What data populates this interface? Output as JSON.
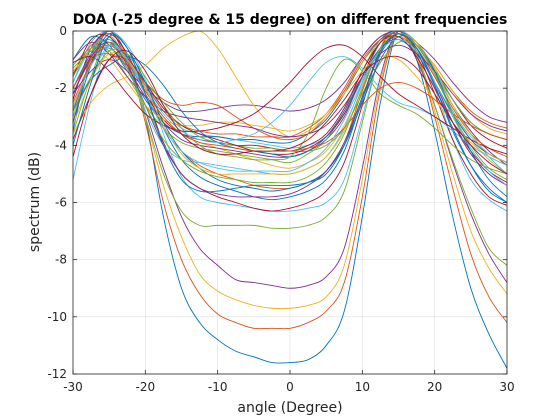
{
  "chart_data": {
    "type": "line",
    "title": "DOA (-25 degree & 15 degree) on different frequencies",
    "xlabel": "angle (Degree)",
    "ylabel": "spectrum (dB)",
    "xlim": [
      -30,
      30
    ],
    "ylim": [
      -12,
      0
    ],
    "xticks": [
      -30,
      -20,
      -10,
      0,
      10,
      20,
      30
    ],
    "yticks": [
      0,
      -2,
      -4,
      -6,
      -8,
      -10,
      -12
    ],
    "grid": true,
    "legend": "none",
    "colors": [
      "#0072BD",
      "#D95319",
      "#EDB120",
      "#7E2F8E",
      "#77AC30",
      "#4DBEEE",
      "#A2142F"
    ],
    "x": [
      -30,
      -27.5,
      -25,
      -22.5,
      -20,
      -17.5,
      -15,
      -12.5,
      -10,
      -7.5,
      -5,
      -2.5,
      0,
      2.5,
      5,
      7.5,
      10,
      12.5,
      15,
      17.5,
      20,
      22.5,
      25,
      27.5,
      30
    ],
    "series": [
      {
        "values": [
          -3.5,
          -0.8,
          0,
          -0.9,
          -3.0,
          -6.5,
          -9.0,
          -10.2,
          -10.8,
          -11.2,
          -11.4,
          -11.6,
          -11.6,
          -11.5,
          -11.0,
          -9.8,
          -6.5,
          -2.5,
          0,
          -1.0,
          -3.5,
          -6.5,
          -9.0,
          -10.6,
          -11.8
        ]
      },
      {
        "values": [
          -3.2,
          -0.9,
          0,
          -1.0,
          -3.2,
          -6.0,
          -8.0,
          -9.2,
          -9.9,
          -10.2,
          -10.4,
          -10.4,
          -10.4,
          -10.2,
          -9.8,
          -8.8,
          -5.8,
          -2.0,
          0,
          -0.8,
          -3.0,
          -5.5,
          -7.8,
          -9.3,
          -10.2
        ]
      },
      {
        "values": [
          -3.0,
          -1.0,
          0,
          -1.0,
          -3.0,
          -5.4,
          -7.2,
          -8.5,
          -9.1,
          -9.4,
          -9.6,
          -9.7,
          -9.7,
          -9.6,
          -9.3,
          -8.2,
          -5.2,
          -1.8,
          0,
          -0.9,
          -2.8,
          -5.0,
          -7.0,
          -8.3,
          -9.2
        ]
      },
      {
        "values": [
          -2.8,
          -1.1,
          0,
          -1.1,
          -2.8,
          -4.8,
          -6.5,
          -7.6,
          -8.2,
          -8.7,
          -8.8,
          -8.9,
          -9.0,
          -8.9,
          -8.6,
          -7.6,
          -4.8,
          -1.6,
          0,
          -1.0,
          -2.6,
          -4.6,
          -6.4,
          -7.8,
          -8.8
        ]
      },
      {
        "values": [
          -3.6,
          -1.6,
          -0.2,
          -1.2,
          -3.0,
          -5.0,
          -6.3,
          -6.8,
          -6.8,
          -6.8,
          -6.8,
          -6.9,
          -6.9,
          -6.8,
          -6.5,
          -5.6,
          -3.2,
          -0.8,
          0,
          -0.8,
          -2.6,
          -4.5,
          -6.2,
          -7.6,
          -8.2
        ]
      },
      {
        "values": [
          -1.8,
          -0.4,
          0,
          -0.5,
          -1.7,
          -3.6,
          -5.1,
          -5.8,
          -6.0,
          -6.1,
          -6.2,
          -6.3,
          -6.3,
          -6.2,
          -6.0,
          -5.2,
          -3.0,
          -0.8,
          -0.1,
          -0.6,
          -2.0,
          -3.8,
          -5.2,
          -5.9,
          -6.3
        ]
      },
      {
        "values": [
          -2.4,
          -0.6,
          -0.1,
          -0.8,
          -2.2,
          -3.9,
          -5.0,
          -5.5,
          -5.8,
          -6.0,
          -6.2,
          -6.3,
          -6.2,
          -6.0,
          -5.6,
          -4.6,
          -2.6,
          -0.6,
          0,
          -0.7,
          -2.2,
          -3.8,
          -5.0,
          -5.8,
          -6.1
        ]
      },
      {
        "values": [
          -2.0,
          -0.8,
          -0.3,
          -0.9,
          -2.0,
          -3.4,
          -4.5,
          -5.1,
          -5.4,
          -5.6,
          -5.8,
          -5.9,
          -5.8,
          -5.6,
          -5.2,
          -4.2,
          -2.4,
          -0.7,
          -0.1,
          -0.6,
          -1.9,
          -3.5,
          -4.7,
          -5.5,
          -6.0
        ]
      },
      {
        "values": [
          -1.5,
          -0.5,
          -0.4,
          -1.0,
          -2.2,
          -3.4,
          -4.2,
          -4.7,
          -5.0,
          -5.2,
          -5.4,
          -5.5,
          -5.5,
          -5.3,
          -4.9,
          -3.9,
          -2.1,
          -0.6,
          -0.2,
          -0.7,
          -1.8,
          -3.2,
          -4.3,
          -5.0,
          -5.4
        ]
      },
      {
        "values": [
          -2.6,
          -1.2,
          -0.4,
          -1.1,
          -2.1,
          -3.0,
          -3.6,
          -3.9,
          -4.1,
          -4.3,
          -4.5,
          -4.7,
          -4.8,
          -4.6,
          -4.2,
          -3.3,
          -1.9,
          -0.6,
          -0.1,
          -0.6,
          -1.6,
          -2.8,
          -3.8,
          -4.5,
          -5.0
        ]
      },
      {
        "values": [
          -2.2,
          -1.0,
          -0.6,
          -1.3,
          -2.3,
          -3.2,
          -3.8,
          -4.0,
          -4.1,
          -4.2,
          -4.3,
          -4.4,
          -4.4,
          -4.2,
          -3.8,
          -3.0,
          -1.6,
          -0.4,
          0,
          -0.4,
          -1.4,
          -2.6,
          -3.5,
          -4.2,
          -4.7
        ]
      },
      {
        "values": [
          -1.2,
          -0.6,
          -0.7,
          -1.6,
          -2.6,
          -3.4,
          -3.9,
          -4.1,
          -4.2,
          -4.3,
          -4.4,
          -4.5,
          -4.6,
          -4.3,
          -3.8,
          -2.8,
          -1.4,
          -0.3,
          0,
          -0.5,
          -1.5,
          -2.6,
          -3.6,
          -4.3,
          -4.6
        ]
      },
      {
        "values": [
          -3.0,
          -1.6,
          -0.5,
          -0.8,
          -1.8,
          -2.8,
          -3.4,
          -3.6,
          -3.7,
          -3.8,
          -3.9,
          -4.0,
          -4.1,
          -4.0,
          -3.7,
          -2.9,
          -1.7,
          -0.6,
          -0.1,
          -0.6,
          -1.6,
          -2.8,
          -3.7,
          -4.3,
          -4.6
        ]
      },
      {
        "values": [
          -1.6,
          -0.3,
          -0.2,
          -1.0,
          -2.2,
          -3.1,
          -3.6,
          -3.8,
          -3.9,
          -4.0,
          -4.0,
          -4.1,
          -4.2,
          -4.0,
          -3.6,
          -2.7,
          -1.4,
          -0.4,
          0,
          -0.4,
          -1.3,
          -2.4,
          -3.3,
          -3.8,
          -4.1
        ]
      },
      {
        "values": [
          -1.0,
          -0.2,
          -0.5,
          -1.4,
          -2.4,
          -3.2,
          -3.6,
          -3.7,
          -3.7,
          -3.8,
          -3.8,
          -3.9,
          -3.9,
          -3.6,
          -3.1,
          -2.2,
          -1.1,
          -0.3,
          0,
          -0.5,
          -1.4,
          -2.4,
          -3.2,
          -3.6,
          -3.8
        ]
      },
      {
        "values": [
          -2.5,
          -1.1,
          -0.4,
          -0.9,
          -1.9,
          -2.8,
          -3.3,
          -3.5,
          -3.6,
          -3.6,
          -3.7,
          -3.7,
          -3.7,
          -3.4,
          -2.9,
          -2.0,
          -0.9,
          -0.2,
          -0.1,
          -0.5,
          -1.2,
          -2.1,
          -2.8,
          -3.2,
          -3.4
        ]
      },
      {
        "values": [
          -1.4,
          -0.8,
          -1.0,
          -1.8,
          -2.6,
          -3.1,
          -3.3,
          -3.3,
          -3.2,
          -3.2,
          -3.3,
          -3.4,
          -3.5,
          -3.3,
          -2.9,
          -2.1,
          -1.1,
          -0.4,
          -0.2,
          -0.5,
          -1.2,
          -2.1,
          -2.9,
          -3.4,
          -3.6
        ]
      },
      {
        "values": [
          -2.2,
          -1.4,
          -1.0,
          -1.4,
          -2.0,
          -2.5,
          -2.8,
          -2.8,
          -2.7,
          -2.6,
          -2.6,
          -2.7,
          -2.8,
          -2.7,
          -2.4,
          -1.8,
          -0.9,
          -0.2,
          0,
          -0.4,
          -1.0,
          -1.8,
          -2.5,
          -3.0,
          -3.2
        ]
      },
      {
        "values": [
          -1.3,
          -0.7,
          -0.6,
          -1.1,
          -1.8,
          -2.5,
          -3.2,
          -3.7,
          -3.9,
          -4.0,
          -4.1,
          -4.1,
          -4.2,
          -4.2,
          -4.0,
          -3.4,
          -2.2,
          -1.1,
          -0.4,
          -0.5,
          -1.3,
          -2.4,
          -3.2,
          -3.6,
          -3.8
        ]
      },
      {
        "values": [
          -5.2,
          -2.4,
          -0.5,
          -1.2,
          -2.8,
          -4.0,
          -4.5,
          -4.6,
          -4.7,
          -4.8,
          -4.9,
          -5.0,
          -5.0,
          -4.8,
          -4.4,
          -3.4,
          -1.8,
          -0.4,
          0,
          -0.4,
          -1.4,
          -2.6,
          -3.6,
          -4.4,
          -5.0
        ]
      },
      {
        "values": [
          -4.4,
          -2.2,
          -1.0,
          -1.0,
          -1.8,
          -2.7,
          -3.3,
          -3.6,
          -3.8,
          -4.0,
          -4.2,
          -4.3,
          -4.3,
          -4.1,
          -3.7,
          -2.9,
          -1.6,
          -0.4,
          -0.2,
          -0.9,
          -2.0,
          -3.2,
          -4.2,
          -4.9,
          -5.3
        ]
      },
      {
        "values": [
          -2.8,
          -1.7,
          -1.2,
          -0.9,
          -1.2,
          -1.9,
          -2.8,
          -3.5,
          -3.9,
          -4.1,
          -4.2,
          -4.3,
          -4.4,
          -4.2,
          -3.7,
          -2.8,
          -1.6,
          -0.6,
          -0.3,
          -0.8,
          -1.8,
          -2.9,
          -3.8,
          -4.3,
          -4.6
        ]
      },
      {
        "values": [
          -2.0,
          -1.0,
          -0.8,
          -1.2,
          -1.8,
          -2.4,
          -2.6,
          -2.5,
          -2.6,
          -3.0,
          -3.4,
          -3.7,
          -3.8,
          -3.6,
          -3.0,
          -2.1,
          -1.0,
          -0.3,
          -0.1,
          -0.6,
          -1.6,
          -2.7,
          -3.6,
          -4.1,
          -4.4
        ]
      },
      {
        "values": [
          -3.6,
          -2.5,
          -1.9,
          -1.6,
          -1.2,
          -0.6,
          -0.2,
          0,
          -0.6,
          -1.6,
          -2.6,
          -3.3,
          -3.7,
          -3.5,
          -3.0,
          -2.2,
          -1.4,
          -0.9,
          -1.0,
          -1.6,
          -2.4,
          -3.2,
          -3.9,
          -4.4,
          -4.7
        ]
      },
      {
        "values": [
          -1.0,
          -0.4,
          -0.8,
          -1.6,
          -2.3,
          -2.8,
          -3.0,
          -3.1,
          -3.2,
          -3.3,
          -3.4,
          -3.6,
          -3.7,
          -3.6,
          -3.3,
          -2.6,
          -1.6,
          -0.8,
          -0.5,
          -0.8,
          -1.4,
          -2.2,
          -2.9,
          -3.3,
          -3.5
        ]
      },
      {
        "values": [
          -2.8,
          -1.6,
          -0.7,
          -0.8,
          -1.6,
          -2.6,
          -3.4,
          -4.0,
          -4.3,
          -4.4,
          -4.5,
          -4.5,
          -4.4,
          -3.6,
          -2.0,
          -1.0,
          -1.4,
          -2.2,
          -2.6,
          -2.9,
          -3.4,
          -4.0,
          -4.5,
          -4.8,
          -5.0
        ]
      },
      {
        "values": [
          -1.8,
          -0.6,
          -0.3,
          -1.0,
          -2.0,
          -2.9,
          -3.5,
          -3.8,
          -3.9,
          -3.8,
          -3.6,
          -3.2,
          -2.6,
          -1.8,
          -1.1,
          -0.9,
          -1.3,
          -2.0,
          -2.5,
          -2.7,
          -3.0,
          -3.5,
          -4.0,
          -4.4,
          -4.7
        ]
      },
      {
        "values": [
          -1.1,
          -0.9,
          -1.4,
          -2.2,
          -2.9,
          -3.3,
          -3.5,
          -3.5,
          -3.4,
          -3.2,
          -2.9,
          -2.4,
          -1.8,
          -1.1,
          -0.6,
          -0.5,
          -0.9,
          -1.6,
          -2.2,
          -2.6,
          -3.0,
          -3.4,
          -3.8,
          -4.1,
          -4.3
        ]
      },
      {
        "values": [
          -3.2,
          -1.2,
          -0.1,
          -0.6,
          -1.8,
          -3.2,
          -4.2,
          -4.8,
          -5.2,
          -5.4,
          -5.5,
          -5.6,
          -5.5,
          -5.3,
          -4.9,
          -4.0,
          -2.5,
          -1.0,
          -0.2,
          -0.4,
          -1.4,
          -2.9,
          -4.2,
          -5.2,
          -5.8
        ]
      },
      {
        "values": [
          -2.0,
          -0.9,
          -0.5,
          -1.1,
          -2.1,
          -3.0,
          -3.6,
          -3.9,
          -4.0,
          -4.1,
          -4.2,
          -4.2,
          -4.2,
          -4.1,
          -3.9,
          -3.4,
          -2.6,
          -2.0,
          -1.8,
          -2.0,
          -2.4,
          -2.9,
          -3.3,
          -3.6,
          -3.8
        ]
      },
      {
        "values": [
          -3.3,
          -1.7,
          -0.8,
          -1.0,
          -2.0,
          -3.3,
          -4.3,
          -4.8,
          -5.0,
          -5.0,
          -5.0,
          -5.0,
          -5.0,
          -4.8,
          -4.4,
          -3.5,
          -2.0,
          -0.6,
          -0.1,
          -0.4,
          -1.3,
          -2.6,
          -3.6,
          -4.3,
          -4.6
        ]
      },
      {
        "values": [
          -2.2,
          -0.9,
          -0.4,
          -1.2,
          -2.6,
          -4.0,
          -5.0,
          -5.5,
          -5.7,
          -5.8,
          -5.8,
          -5.8,
          -5.7,
          -5.4,
          -4.9,
          -3.9,
          -2.3,
          -0.8,
          -0.1,
          -0.6,
          -1.8,
          -3.2,
          -4.3,
          -5.0,
          -5.4
        ]
      },
      {
        "values": [
          -1.6,
          -0.6,
          -0.4,
          -1.3,
          -2.6,
          -3.8,
          -4.5,
          -4.9,
          -5.1,
          -5.2,
          -5.3,
          -5.3,
          -5.3,
          -5.1,
          -4.6,
          -3.6,
          -2.0,
          -0.6,
          -0.1,
          -0.5,
          -1.5,
          -2.9,
          -4.0,
          -4.8,
          -5.2
        ]
      },
      {
        "values": [
          -2.7,
          -1.2,
          -0.5,
          -1.0,
          -2.2,
          -3.4,
          -4.2,
          -4.6,
          -4.8,
          -4.9,
          -4.9,
          -4.9,
          -4.9,
          -4.6,
          -4.1,
          -3.1,
          -1.8,
          -0.7,
          -0.3,
          -0.7,
          -1.8,
          -3.0,
          -4.1,
          -4.9,
          -5.4
        ]
      },
      {
        "values": [
          -3.8,
          -2.2,
          -1.0,
          -0.7,
          -1.4,
          -2.6,
          -3.6,
          -4.1,
          -4.3,
          -4.3,
          -4.2,
          -4.2,
          -4.1,
          -3.8,
          -3.2,
          -2.4,
          -1.5,
          -1.0,
          -0.9,
          -1.3,
          -2.2,
          -3.2,
          -4.0,
          -4.6,
          -5.0
        ]
      },
      {
        "values": [
          -4.0,
          -1.8,
          -0.2,
          -0.6,
          -2.2,
          -4.0,
          -5.2,
          -5.6,
          -5.6,
          -5.5,
          -5.4,
          -5.4,
          -5.4,
          -5.3,
          -5.0,
          -4.0,
          -2.3,
          -0.7,
          -0.1,
          -0.6,
          -1.9,
          -3.4,
          -4.7,
          -5.6,
          -6.0
        ]
      }
    ]
  }
}
